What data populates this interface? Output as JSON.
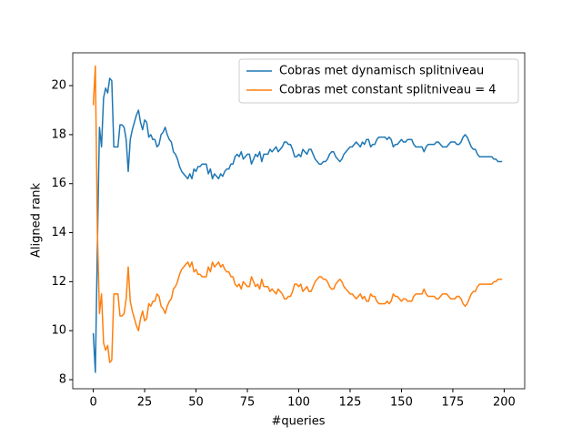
{
  "chart_data": {
    "type": "line",
    "xlabel": "#queries",
    "ylabel": "Aligned rank",
    "xlim": [
      -10,
      210
    ],
    "ylim": [
      7.63,
      21.34
    ],
    "xticks": [
      0,
      25,
      50,
      75,
      100,
      125,
      150,
      175,
      200
    ],
    "yticks": [
      8,
      10,
      12,
      14,
      16,
      18,
      20
    ],
    "legend": "upper right",
    "x": [
      0,
      1,
      2,
      3,
      4,
      5,
      6,
      7,
      8,
      9,
      10,
      11,
      12,
      13,
      14,
      15,
      16,
      17,
      18,
      19,
      20,
      21,
      22,
      23,
      24,
      25,
      26,
      27,
      28,
      29,
      30,
      31,
      32,
      33,
      34,
      35,
      36,
      37,
      38,
      39,
      40,
      41,
      42,
      43,
      44,
      45,
      46,
      47,
      48,
      49,
      50,
      51,
      52,
      53,
      54,
      55,
      56,
      57,
      58,
      59,
      60,
      61,
      62,
      63,
      64,
      65,
      66,
      67,
      68,
      69,
      70,
      71,
      72,
      73,
      74,
      75,
      76,
      77,
      78,
      79,
      80,
      81,
      82,
      83,
      84,
      85,
      86,
      87,
      88,
      89,
      90,
      91,
      92,
      93,
      94,
      95,
      96,
      97,
      98,
      99,
      100,
      101,
      102,
      103,
      104,
      105,
      106,
      107,
      108,
      109,
      110,
      111,
      112,
      113,
      114,
      115,
      116,
      117,
      118,
      119,
      120,
      121,
      122,
      123,
      124,
      125,
      126,
      127,
      128,
      129,
      130,
      131,
      132,
      133,
      134,
      135,
      136,
      137,
      138,
      139,
      140,
      141,
      142,
      143,
      144,
      145,
      146,
      147,
      148,
      149,
      150,
      151,
      152,
      153,
      154,
      155,
      156,
      157,
      158,
      159,
      160,
      161,
      162,
      163,
      164,
      165,
      166,
      167,
      168,
      169,
      170,
      171,
      172,
      173,
      174,
      175,
      176,
      177,
      178,
      179,
      180,
      181,
      182,
      183,
      184,
      185,
      186,
      187,
      188,
      189,
      190,
      191,
      192,
      193,
      194,
      195,
      196,
      197,
      198,
      199
    ],
    "series": [
      {
        "name": "Cobras met dynamisch splitniveau",
        "color": "#1f77b4",
        "values": [
          9.9,
          8.3,
          13.5,
          18.3,
          17.5,
          19.5,
          19.9,
          19.7,
          20.3,
          20.2,
          17.5,
          17.5,
          17.5,
          18.4,
          18.4,
          18.3,
          17.8,
          16.5,
          17.8,
          18.2,
          18.5,
          18.8,
          19.0,
          18.5,
          18.2,
          18.6,
          18.5,
          17.9,
          18.0,
          17.8,
          17.8,
          17.5,
          17.6,
          18.0,
          18.1,
          18.3,
          18.0,
          17.8,
          17.7,
          17.3,
          17.2,
          17.0,
          16.7,
          16.5,
          16.4,
          16.3,
          16.2,
          16.4,
          16.2,
          16.6,
          16.5,
          16.7,
          16.7,
          16.8,
          16.8,
          16.8,
          16.4,
          16.6,
          16.2,
          16.4,
          16.3,
          16.2,
          16.4,
          16.3,
          16.5,
          16.6,
          16.6,
          16.8,
          16.8,
          17.1,
          17.2,
          17.1,
          17.3,
          17.0,
          17.1,
          17.2,
          17.2,
          16.8,
          17.0,
          17.2,
          17.1,
          17.3,
          16.9,
          17.2,
          17.2,
          17.2,
          17.4,
          17.3,
          17.4,
          17.5,
          17.3,
          17.4,
          17.5,
          17.7,
          17.7,
          17.6,
          17.6,
          17.4,
          17.1,
          17.1,
          17.2,
          17.1,
          17.4,
          17.3,
          17.2,
          17.4,
          17.4,
          17.2,
          17.0,
          16.9,
          16.8,
          16.8,
          16.9,
          16.9,
          17.0,
          17.2,
          17.3,
          17.3,
          17.1,
          17.0,
          16.9,
          17.0,
          17.2,
          17.3,
          17.4,
          17.5,
          17.5,
          17.6,
          17.7,
          17.6,
          17.5,
          17.7,
          17.6,
          17.8,
          17.8,
          17.5,
          17.6,
          17.6,
          17.8,
          17.9,
          17.9,
          17.9,
          17.9,
          17.8,
          17.9,
          17.8,
          17.5,
          17.6,
          17.6,
          17.7,
          17.8,
          17.7,
          17.7,
          17.8,
          17.8,
          17.8,
          17.6,
          17.5,
          17.5,
          17.5,
          17.5,
          17.3,
          17.5,
          17.6,
          17.6,
          17.6,
          17.6,
          17.7,
          17.7,
          17.6,
          17.5,
          17.5,
          17.5,
          17.6,
          17.7,
          17.7,
          17.7,
          17.6,
          17.6,
          17.7,
          17.9,
          18.0,
          17.9,
          17.7,
          17.5,
          17.4,
          17.4,
          17.2,
          17.1,
          17.1,
          17.1,
          17.1,
          17.1,
          17.1,
          17.1,
          17.0,
          17.0,
          16.9,
          16.9,
          16.9
        ]
      },
      {
        "name": "Cobras met constant splitniveau = 4",
        "color": "#ff7f0e",
        "values": [
          19.2,
          20.8,
          14.0,
          10.7,
          11.5,
          9.5,
          9.2,
          9.4,
          8.7,
          8.8,
          11.5,
          11.5,
          11.5,
          10.6,
          10.6,
          10.7,
          11.3,
          12.6,
          11.2,
          10.8,
          10.5,
          10.2,
          10.0,
          10.5,
          10.8,
          10.4,
          10.5,
          11.1,
          11.0,
          11.2,
          11.2,
          11.5,
          11.4,
          11.0,
          10.9,
          10.7,
          11.0,
          11.2,
          11.3,
          11.7,
          11.8,
          12.0,
          12.3,
          12.5,
          12.6,
          12.7,
          12.8,
          12.6,
          12.8,
          12.4,
          12.5,
          12.3,
          12.3,
          12.2,
          12.2,
          12.2,
          12.6,
          12.4,
          12.8,
          12.6,
          12.7,
          12.8,
          12.6,
          12.7,
          12.5,
          12.4,
          12.4,
          12.2,
          12.2,
          11.9,
          11.8,
          11.9,
          11.7,
          12.0,
          11.9,
          11.8,
          11.8,
          12.2,
          12.0,
          11.8,
          11.9,
          11.7,
          12.1,
          11.8,
          11.8,
          11.8,
          11.6,
          11.7,
          11.6,
          11.5,
          11.7,
          11.6,
          11.5,
          11.3,
          11.3,
          11.4,
          11.4,
          11.6,
          11.9,
          11.9,
          11.8,
          11.9,
          11.6,
          11.7,
          11.8,
          11.6,
          11.6,
          11.8,
          12.0,
          12.1,
          12.2,
          12.2,
          12.1,
          12.1,
          12.0,
          11.8,
          11.7,
          11.7,
          11.9,
          12.0,
          12.1,
          12.0,
          11.8,
          11.7,
          11.6,
          11.5,
          11.5,
          11.4,
          11.3,
          11.4,
          11.5,
          11.3,
          11.4,
          11.2,
          11.2,
          11.5,
          11.4,
          11.4,
          11.2,
          11.1,
          11.1,
          11.1,
          11.1,
          11.2,
          11.1,
          11.2,
          11.5,
          11.4,
          11.4,
          11.3,
          11.2,
          11.3,
          11.3,
          11.2,
          11.2,
          11.2,
          11.4,
          11.5,
          11.5,
          11.5,
          11.5,
          11.7,
          11.5,
          11.4,
          11.4,
          11.4,
          11.4,
          11.3,
          11.3,
          11.4,
          11.5,
          11.5,
          11.5,
          11.4,
          11.3,
          11.3,
          11.3,
          11.4,
          11.4,
          11.3,
          11.1,
          11.0,
          11.1,
          11.3,
          11.5,
          11.6,
          11.6,
          11.8,
          11.9,
          11.9,
          11.9,
          11.9,
          11.9,
          11.9,
          11.9,
          12.0,
          12.0,
          12.1,
          12.1,
          12.1
        ]
      }
    ]
  }
}
